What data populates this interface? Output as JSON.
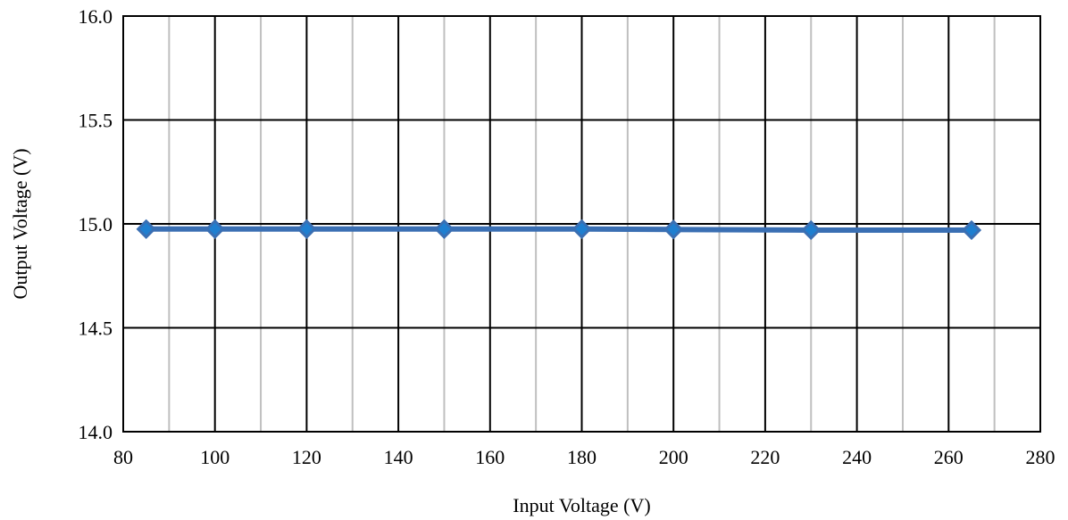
{
  "chart_data": {
    "type": "line",
    "title": "",
    "xlabel": "Input Voltage  (V)",
    "ylabel": "Output Voltage (V)",
    "xlim": [
      80,
      280
    ],
    "ylim": [
      14.0,
      16.0
    ],
    "x_major_ticks": [
      80,
      100,
      120,
      140,
      160,
      180,
      200,
      220,
      240,
      260,
      280
    ],
    "x_minor_ticks": [
      90,
      110,
      130,
      150,
      170,
      190,
      210,
      230,
      250,
      270
    ],
    "y_major_ticks": [
      14.0,
      14.5,
      15.0,
      15.5,
      16.0
    ],
    "x_tick_labels": [
      "80",
      "100",
      "120",
      "140",
      "160",
      "180",
      "200",
      "220",
      "240",
      "260",
      "280"
    ],
    "y_tick_labels": [
      "14.0",
      "14.5",
      "15.0",
      "15.5",
      "16.0"
    ],
    "grid": true,
    "legend": "none",
    "series": [
      {
        "x": [
          85,
          100,
          120,
          150,
          180,
          200,
          230,
          265
        ],
        "y": [
          14.975,
          14.975,
          14.975,
          14.975,
          14.975,
          14.973,
          14.97,
          14.97
        ],
        "marker": "diamond",
        "color": "#3a6fb3",
        "marker_color": "#1f7fd0"
      }
    ],
    "colors": {
      "major_grid": "#000000",
      "minor_grid": "#bfbfbf",
      "line": "#3a6fb3",
      "marker_fill": "#1f7fd0",
      "marker_stroke": "#3a6fb3"
    }
  }
}
